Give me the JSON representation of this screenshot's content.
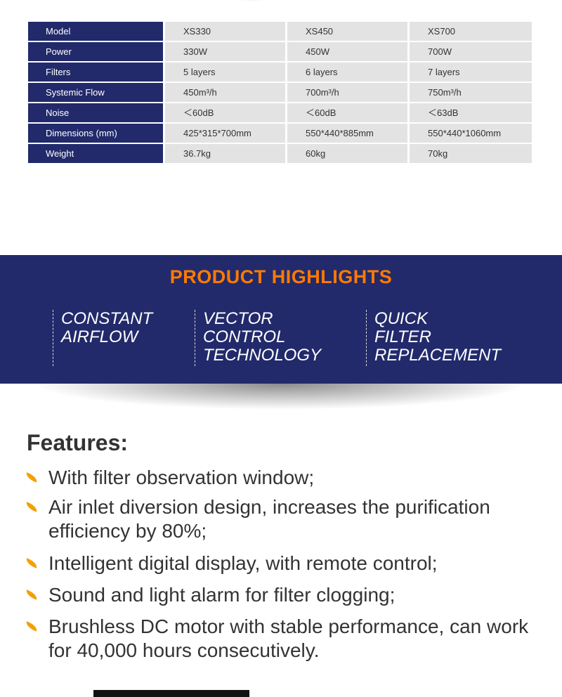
{
  "specs": {
    "rows": [
      [
        "Model",
        "XS330",
        "XS450",
        "XS700"
      ],
      [
        "Power",
        "330W",
        "450W",
        "700W"
      ],
      [
        "Filters",
        "5 layers",
        "6 layers",
        "7 layers"
      ],
      [
        "Systemic Flow",
        "450m³/h",
        "700m³/h",
        "750m³/h"
      ],
      [
        "Noise",
        "＜60dB",
        "＜60dB",
        "＜63dB"
      ],
      [
        "Dimensions (mm)",
        "425*315*700mm",
        "550*440*885mm",
        "550*440*1060mm"
      ],
      [
        "Weight",
        "36.7kg",
        "60kg",
        "70kg"
      ]
    ]
  },
  "highlights": {
    "title": "PRODUCT HIGHLIGHTS",
    "items": [
      [
        "CONSTANT",
        "AIRFLOW"
      ],
      [
        "VECTOR",
        "CONTROL",
        "TECHNOLOGY"
      ],
      [
        "QUICK",
        "FILTER",
        "REPLACEMENT"
      ]
    ]
  },
  "features": {
    "heading": "Features:",
    "items": [
      "With filter observation window;",
      "Air inlet diversion design, increases the purification efficiency by 80%;",
      "Intelligent digital display, with remote control;",
      "Sound and light alarm for filter clogging;",
      "Brushless DC motor with stable performance, can work for 40,000 hours consecutively."
    ]
  },
  "colors": {
    "navy": "#222a6b",
    "orange": "#ff7a00",
    "bullet": "#f4a000"
  }
}
